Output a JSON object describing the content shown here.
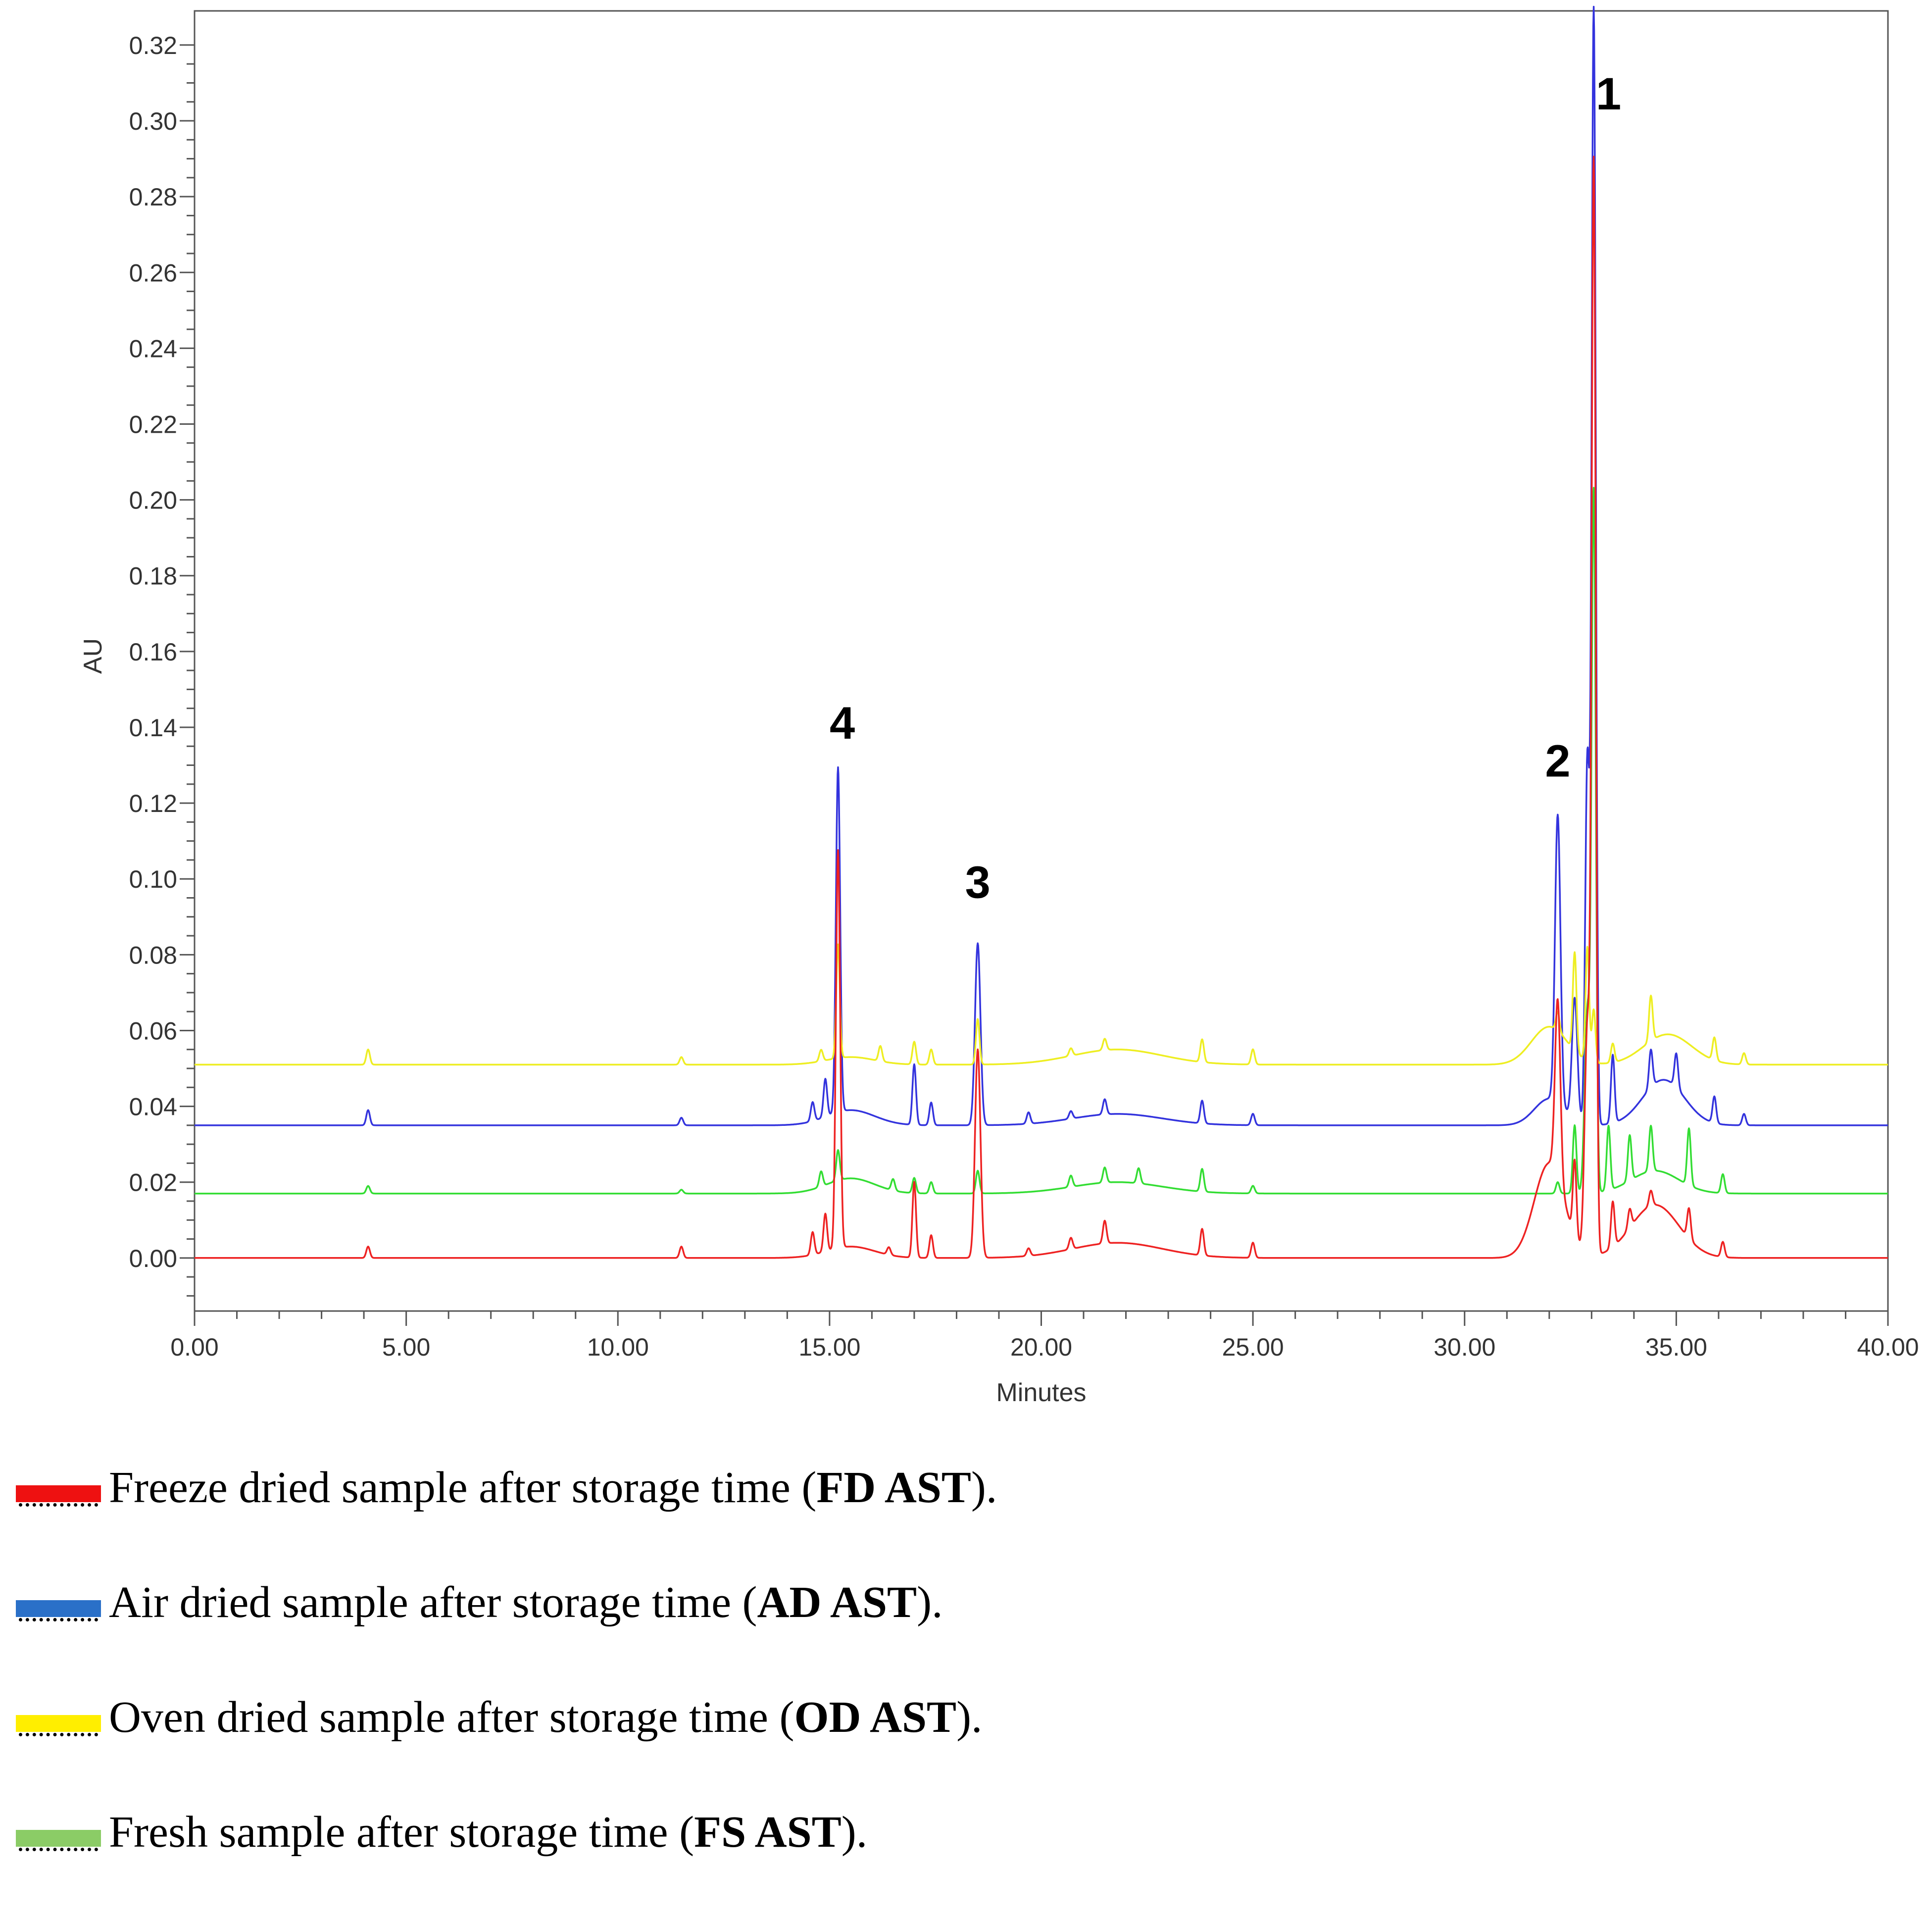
{
  "chart_data": {
    "type": "line",
    "title": "",
    "xlabel": "Minutes",
    "ylabel": "AU",
    "xlim": [
      0,
      40
    ],
    "ylim": [
      -0.014,
      0.329
    ],
    "x_ticks": [
      "0.00",
      "5.00",
      "10.00",
      "15.00",
      "20.00",
      "25.00",
      "30.00",
      "35.00",
      "40.00"
    ],
    "x_tick_values": [
      0,
      5,
      10,
      15,
      20,
      25,
      30,
      35,
      40
    ],
    "y_ticks": [
      "0.00",
      "0.02",
      "0.04",
      "0.06",
      "0.08",
      "0.10",
      "0.12",
      "0.14",
      "0.16",
      "0.18",
      "0.20",
      "0.22",
      "0.24",
      "0.26",
      "0.28",
      "0.30",
      "0.32"
    ],
    "y_tick_values": [
      0.0,
      0.02,
      0.04,
      0.06,
      0.08,
      0.1,
      0.12,
      0.14,
      0.16,
      0.18,
      0.2,
      0.22,
      0.24,
      0.26,
      0.28,
      0.3,
      0.32
    ],
    "peak_labels": [
      {
        "text": "1",
        "x": 33.4,
        "y": 0.303
      },
      {
        "text": "2",
        "x": 32.2,
        "y": 0.127
      },
      {
        "text": "3",
        "x": 18.5,
        "y": 0.095
      },
      {
        "text": "4",
        "x": 15.3,
        "y": 0.137
      }
    ],
    "series": [
      {
        "name": "FS AST",
        "color": "#33dd33",
        "baseline": 0.017,
        "points": [
          [
            4.1,
            0.002
          ],
          [
            11.5,
            0.001
          ],
          [
            14.8,
            0.004
          ],
          [
            15.2,
            0.008
          ],
          [
            16.5,
            0.003
          ],
          [
            17.0,
            0.004
          ],
          [
            17.4,
            0.003
          ],
          [
            18.5,
            0.006
          ],
          [
            20.7,
            0.003
          ],
          [
            21.5,
            0.004
          ],
          [
            22.3,
            0.004
          ],
          [
            23.8,
            0.006
          ],
          [
            25.0,
            0.002
          ],
          [
            32.2,
            0.003
          ],
          [
            32.6,
            0.018
          ],
          [
            32.9,
            0.048
          ],
          [
            33.05,
            0.183
          ],
          [
            33.4,
            0.017
          ],
          [
            33.9,
            0.012
          ],
          [
            34.4,
            0.012
          ],
          [
            35.3,
            0.015
          ],
          [
            36.1,
            0.005
          ]
        ],
        "bumps": [
          [
            15.5,
            0.004,
            0.8
          ],
          [
            21.8,
            0.003,
            1.5
          ],
          [
            34.5,
            0.006,
            0.8
          ]
        ]
      },
      {
        "name": "AD AST",
        "color": "#3333dd",
        "baseline": 0.035,
        "points": [
          [
            4.1,
            0.004
          ],
          [
            11.5,
            0.002
          ],
          [
            14.6,
            0.005
          ],
          [
            14.9,
            0.01
          ],
          [
            15.2,
            0.091
          ],
          [
            17.0,
            0.016
          ],
          [
            17.4,
            0.006
          ],
          [
            18.5,
            0.048
          ],
          [
            19.7,
            0.003
          ],
          [
            20.7,
            0.002
          ],
          [
            21.5,
            0.004
          ],
          [
            23.8,
            0.006
          ],
          [
            25.0,
            0.003
          ],
          [
            32.2,
            0.076
          ],
          [
            32.6,
            0.032
          ],
          [
            32.9,
            0.096
          ],
          [
            33.05,
            0.294
          ],
          [
            33.5,
            0.018
          ],
          [
            34.4,
            0.01
          ],
          [
            35.0,
            0.009
          ],
          [
            35.9,
            0.007
          ],
          [
            36.6,
            0.003
          ]
        ],
        "bumps": [
          [
            15.5,
            0.004,
            0.8
          ],
          [
            21.8,
            0.003,
            1.5
          ],
          [
            32.0,
            0.007,
            0.5
          ],
          [
            34.7,
            0.012,
            0.7
          ]
        ]
      },
      {
        "name": "OD AST",
        "color": "#eeee22",
        "baseline": 0.051,
        "points": [
          [
            4.1,
            0.004
          ],
          [
            11.5,
            0.002
          ],
          [
            14.8,
            0.003
          ],
          [
            15.2,
            0.03
          ],
          [
            16.2,
            0.004
          ],
          [
            17.0,
            0.006
          ],
          [
            17.4,
            0.004
          ],
          [
            18.5,
            0.012
          ],
          [
            20.7,
            0.002
          ],
          [
            21.5,
            0.003
          ],
          [
            23.8,
            0.006
          ],
          [
            25.0,
            0.004
          ],
          [
            32.2,
            0.005
          ],
          [
            32.6,
            0.026
          ],
          [
            32.9,
            0.03
          ],
          [
            33.05,
            0.014
          ],
          [
            33.5,
            0.005
          ],
          [
            34.4,
            0.012
          ],
          [
            35.9,
            0.006
          ],
          [
            36.6,
            0.003
          ]
        ],
        "bumps": [
          [
            15.5,
            0.002,
            0.8
          ],
          [
            21.8,
            0.004,
            1.5
          ],
          [
            32.0,
            0.01,
            0.6
          ],
          [
            34.8,
            0.008,
            0.8
          ]
        ]
      },
      {
        "name": "FD AST",
        "color": "#ee2222",
        "baseline": 0.0,
        "points": [
          [
            4.1,
            0.003
          ],
          [
            11.5,
            0.003
          ],
          [
            14.6,
            0.006
          ],
          [
            14.9,
            0.01
          ],
          [
            15.2,
            0.105
          ],
          [
            16.4,
            0.002
          ],
          [
            17.0,
            0.02
          ],
          [
            17.4,
            0.006
          ],
          [
            18.5,
            0.055
          ],
          [
            19.7,
            0.002
          ],
          [
            20.7,
            0.003
          ],
          [
            21.5,
            0.006
          ],
          [
            23.8,
            0.007
          ],
          [
            25.0,
            0.004
          ],
          [
            32.2,
            0.047
          ],
          [
            32.6,
            0.02
          ],
          [
            32.9,
            0.06
          ],
          [
            33.05,
            0.286
          ],
          [
            33.5,
            0.012
          ],
          [
            33.9,
            0.005
          ],
          [
            34.4,
            0.004
          ],
          [
            35.3,
            0.008
          ],
          [
            36.1,
            0.004
          ]
        ],
        "bumps": [
          [
            15.5,
            0.003,
            0.8
          ],
          [
            21.8,
            0.004,
            1.5
          ],
          [
            32.0,
            0.025,
            0.5
          ],
          [
            34.5,
            0.014,
            0.8
          ]
        ]
      }
    ]
  },
  "legend": {
    "items": [
      {
        "text": "Freeze dried sample after storage time (",
        "bold": "FD AST",
        "suffix": ").",
        "color": "#ee1111"
      },
      {
        "text": "Air dried sample after storage time (",
        "bold": "AD AST",
        "suffix": ").",
        "color": "#2a70c8"
      },
      {
        "text": "Oven dried sample after storage time (",
        "bold": "OD AST",
        "suffix": ").",
        "color": "#ffee00"
      },
      {
        "text": "Fresh sample after storage time (",
        "bold": "FS AST",
        "suffix": ").",
        "color": "#8bcc66"
      }
    ]
  }
}
